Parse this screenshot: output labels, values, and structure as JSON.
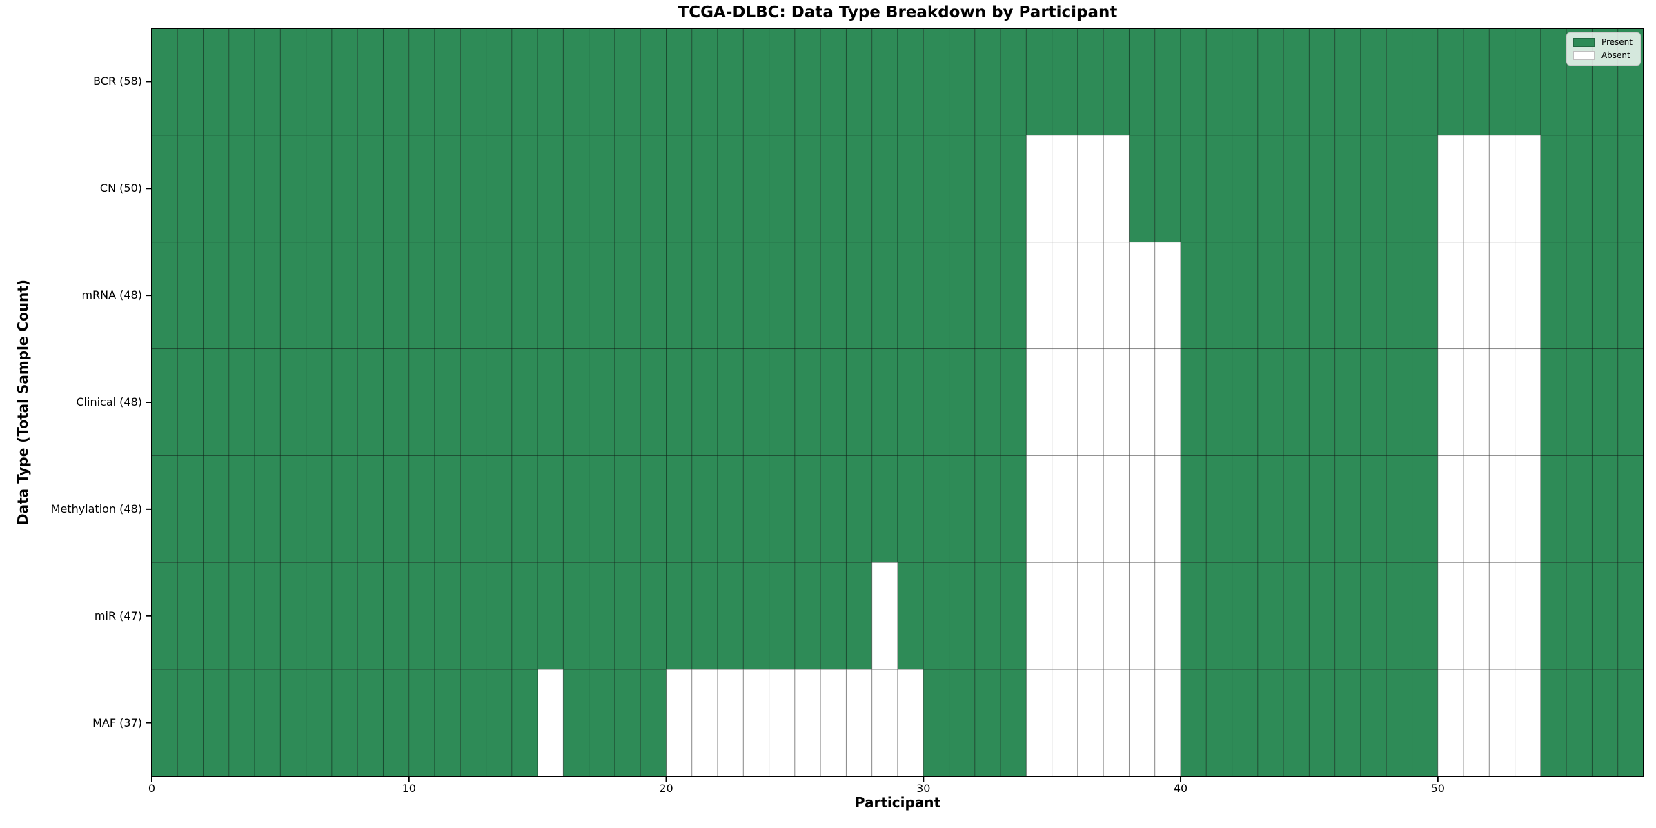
{
  "chart_data": {
    "type": "heatmap",
    "title": "TCGA-DLBC: Data Type Breakdown by Participant",
    "xlabel": "Participant",
    "ylabel": "Data Type (Total Sample Count)",
    "n_participants": 58,
    "xlim": [
      0,
      58
    ],
    "x_ticks": [
      0,
      10,
      20,
      30,
      40,
      50
    ],
    "grid": "cell-edges",
    "rows": [
      {
        "label": "BCR (58)",
        "data_type": "BCR",
        "present_count": 58,
        "absent_participants": []
      },
      {
        "label": "CN (50)",
        "data_type": "CN",
        "present_count": 50,
        "absent_participants": [
          34,
          35,
          36,
          37,
          50,
          51,
          52,
          53
        ]
      },
      {
        "label": "mRNA (48)",
        "data_type": "mRNA",
        "present_count": 48,
        "absent_participants": [
          34,
          35,
          36,
          37,
          38,
          39,
          50,
          51,
          52,
          53
        ]
      },
      {
        "label": "Clinical (48)",
        "data_type": "Clinical",
        "present_count": 48,
        "absent_participants": [
          34,
          35,
          36,
          37,
          38,
          39,
          50,
          51,
          52,
          53
        ]
      },
      {
        "label": "Methylation (48)",
        "data_type": "Methylation",
        "present_count": 48,
        "absent_participants": [
          34,
          35,
          36,
          37,
          38,
          39,
          50,
          51,
          52,
          53
        ]
      },
      {
        "label": "miR (47)",
        "data_type": "miR",
        "present_count": 47,
        "absent_participants": [
          28,
          34,
          35,
          36,
          37,
          38,
          39,
          50,
          51,
          52,
          53
        ]
      },
      {
        "label": "MAF (37)",
        "data_type": "MAF",
        "present_count": 37,
        "absent_participants": [
          15,
          20,
          21,
          22,
          23,
          24,
          25,
          26,
          27,
          28,
          29,
          34,
          35,
          36,
          37,
          38,
          39,
          50,
          51,
          52,
          53
        ]
      }
    ],
    "legend": {
      "position": "upper right",
      "entries": [
        {
          "label": "Present",
          "color": "#2e8b57"
        },
        {
          "label": "Absent",
          "color": "#ffffff"
        }
      ]
    },
    "colors": {
      "present": "#2e8b57",
      "absent": "#ffffff",
      "cell_edge": "rgba(0,0,0,0.35)",
      "spine": "#000000",
      "legend_border": "#cccccc"
    }
  }
}
